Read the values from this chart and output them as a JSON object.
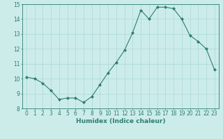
{
  "x": [
    0,
    1,
    2,
    3,
    4,
    5,
    6,
    7,
    8,
    9,
    10,
    11,
    12,
    13,
    14,
    15,
    16,
    17,
    18,
    19,
    20,
    21,
    22,
    23
  ],
  "y": [
    10.1,
    10.0,
    9.7,
    9.2,
    8.6,
    8.7,
    8.7,
    8.4,
    8.8,
    9.6,
    10.4,
    11.1,
    11.9,
    13.1,
    14.6,
    14.0,
    14.8,
    14.8,
    14.7,
    14.0,
    12.9,
    12.5,
    12.0,
    10.6
  ],
  "line_color": "#2e7d6e",
  "marker": "D",
  "marker_size": 2,
  "bg_color": "#ccecea",
  "grid_color": "#aad8d5",
  "xlabel": "Humidex (Indice chaleur)",
  "xlim": [
    -0.5,
    23.5
  ],
  "ylim": [
    8,
    15
  ],
  "yticks": [
    8,
    9,
    10,
    11,
    12,
    13,
    14,
    15
  ],
  "xticks": [
    0,
    1,
    2,
    3,
    4,
    5,
    6,
    7,
    8,
    9,
    10,
    11,
    12,
    13,
    14,
    15,
    16,
    17,
    18,
    19,
    20,
    21,
    22,
    23
  ],
  "label_fontsize": 6.5,
  "tick_fontsize": 5.5
}
